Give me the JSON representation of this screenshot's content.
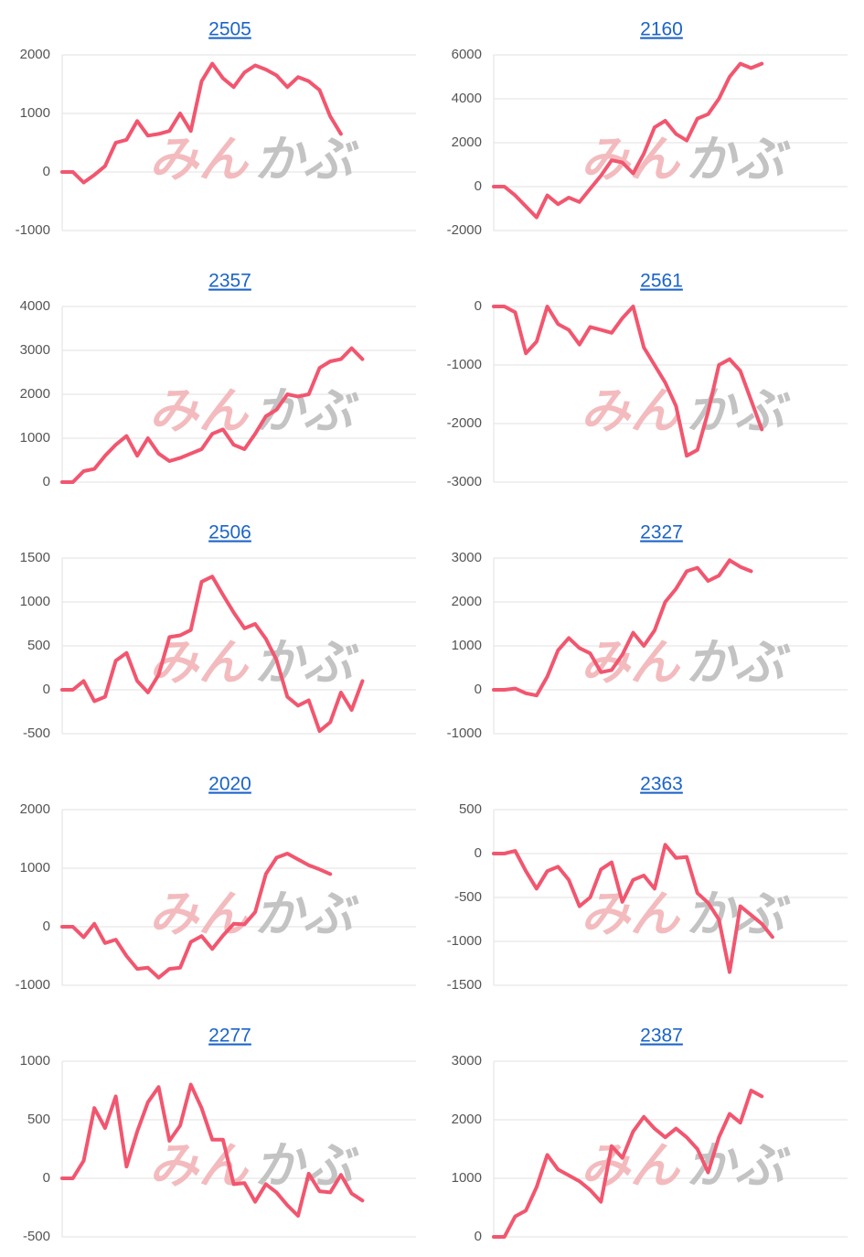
{
  "watermark": [
    "みん",
    "かぶ"
  ],
  "chart_data": [
    {
      "type": "line",
      "title": "2505",
      "color": "#f2566f",
      "grid": true,
      "ylim": [
        -1000,
        2000
      ],
      "yticks": [
        -1000,
        0,
        1000,
        2000
      ],
      "values": [
        0,
        0,
        -180,
        -50,
        100,
        500,
        550,
        870,
        620,
        650,
        700,
        1000,
        700,
        1550,
        1850,
        1600,
        1450,
        1700,
        1820,
        1750,
        1650,
        1450,
        1620,
        1550,
        1400,
        950,
        650
      ]
    },
    {
      "type": "line",
      "title": "2160",
      "color": "#f2566f",
      "grid": true,
      "ylim": [
        -2000,
        6000
      ],
      "yticks": [
        -2000,
        0,
        2000,
        4000,
        6000
      ],
      "values": [
        0,
        0,
        -400,
        -900,
        -1400,
        -400,
        -800,
        -500,
        -700,
        -100,
        500,
        1200,
        1100,
        600,
        1500,
        2700,
        3000,
        2400,
        2100,
        3100,
        3300,
        4000,
        5000,
        5600,
        5400,
        5600
      ]
    },
    {
      "type": "line",
      "title": "2357",
      "color": "#f2566f",
      "grid": true,
      "ylim": [
        0,
        4000
      ],
      "yticks": [
        0,
        1000,
        2000,
        3000,
        4000
      ],
      "values": [
        0,
        0,
        250,
        300,
        600,
        850,
        1050,
        600,
        1000,
        650,
        480,
        550,
        650,
        750,
        1100,
        1200,
        850,
        750,
        1100,
        1500,
        1650,
        2000,
        1950,
        2000,
        2600,
        2750,
        2800,
        3050,
        2800
      ]
    },
    {
      "type": "line",
      "title": "2561",
      "color": "#f2566f",
      "grid": true,
      "ylim": [
        -3000,
        0
      ],
      "yticks": [
        -3000,
        -2000,
        -1000,
        0
      ],
      "values": [
        0,
        0,
        -100,
        -800,
        -600,
        0,
        -300,
        -400,
        -650,
        -350,
        -400,
        -450,
        -200,
        0,
        -700,
        -1000,
        -1300,
        -1700,
        -2550,
        -2450,
        -1800,
        -1000,
        -900,
        -1100,
        -1600,
        -2100
      ]
    },
    {
      "type": "line",
      "title": "2506",
      "color": "#f2566f",
      "grid": true,
      "ylim": [
        -500,
        1500
      ],
      "yticks": [
        -500,
        0,
        500,
        1000,
        1500
      ],
      "values": [
        0,
        0,
        100,
        -130,
        -80,
        330,
        420,
        100,
        -30,
        170,
        600,
        620,
        680,
        1230,
        1290,
        1080,
        880,
        700,
        750,
        580,
        340,
        -80,
        -180,
        -120,
        -470,
        -370,
        -30,
        -230,
        100
      ]
    },
    {
      "type": "line",
      "title": "2327",
      "color": "#f2566f",
      "grid": true,
      "ylim": [
        -1000,
        3000
      ],
      "yticks": [
        -1000,
        0,
        1000,
        2000,
        3000
      ],
      "values": [
        0,
        0,
        30,
        -80,
        -130,
        300,
        900,
        1180,
        950,
        830,
        400,
        450,
        800,
        1300,
        1000,
        1350,
        2000,
        2300,
        2700,
        2780,
        2480,
        2600,
        2950,
        2800,
        2700
      ]
    },
    {
      "type": "line",
      "title": "2020",
      "color": "#f2566f",
      "grid": true,
      "ylim": [
        -1000,
        2000
      ],
      "yticks": [
        -1000,
        0,
        1000,
        2000
      ],
      "values": [
        0,
        0,
        -180,
        50,
        -280,
        -220,
        -500,
        -720,
        -700,
        -870,
        -720,
        -700,
        -260,
        -160,
        -380,
        -150,
        50,
        40,
        250,
        900,
        1180,
        1250,
        1150,
        1050,
        980,
        900
      ]
    },
    {
      "type": "line",
      "title": "2363",
      "color": "#f2566f",
      "grid": true,
      "ylim": [
        -1500,
        500
      ],
      "yticks": [
        -1500,
        -1000,
        -500,
        0,
        500
      ],
      "values": [
        0,
        0,
        30,
        -200,
        -400,
        -200,
        -150,
        -300,
        -600,
        -500,
        -180,
        -100,
        -550,
        -300,
        -250,
        -400,
        100,
        -50,
        -40,
        -450,
        -560,
        -750,
        -1350,
        -600,
        -700,
        -800,
        -950
      ]
    },
    {
      "type": "line",
      "title": "2277",
      "color": "#f2566f",
      "grid": true,
      "ylim": [
        -500,
        1000
      ],
      "yticks": [
        -500,
        0,
        500,
        1000
      ],
      "values": [
        0,
        0,
        150,
        600,
        430,
        700,
        100,
        400,
        650,
        780,
        320,
        450,
        800,
        600,
        330,
        330,
        -50,
        -40,
        -200,
        -50,
        -120,
        -230,
        -320,
        40,
        -110,
        -120,
        30,
        -130,
        -190
      ]
    },
    {
      "type": "line",
      "title": "2387",
      "color": "#f2566f",
      "grid": true,
      "ylim": [
        0,
        3000
      ],
      "yticks": [
        0,
        1000,
        2000,
        3000
      ],
      "values": [
        0,
        0,
        350,
        450,
        850,
        1400,
        1150,
        1050,
        950,
        800,
        600,
        1550,
        1350,
        1800,
        2050,
        1850,
        1700,
        1850,
        1700,
        1500,
        1100,
        1700,
        2100,
        1950,
        2500,
        2400
      ]
    }
  ]
}
